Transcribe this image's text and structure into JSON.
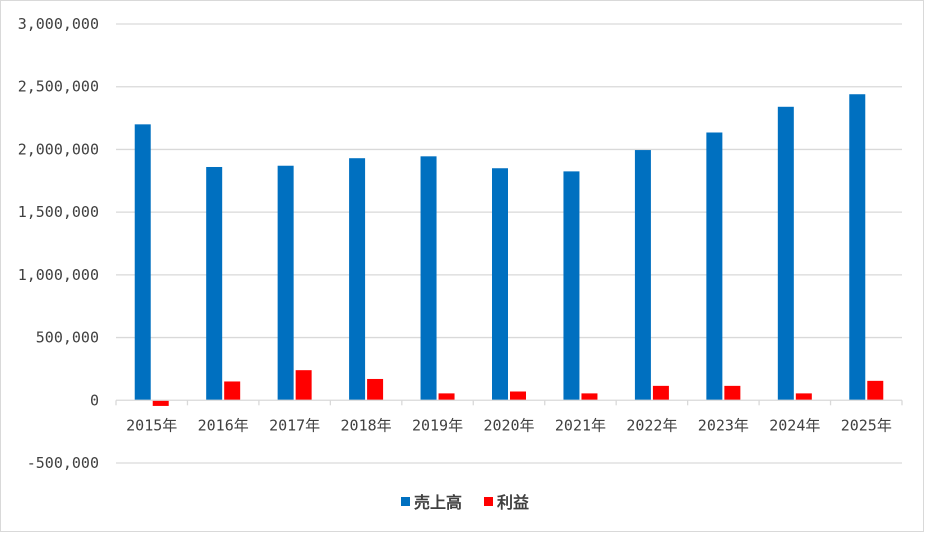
{
  "chart_data": {
    "type": "bar",
    "title": "",
    "xlabel": "",
    "ylabel": "",
    "categories": [
      "2015年",
      "2016年",
      "2017年",
      "2018年",
      "2019年",
      "2020年",
      "2021年",
      "2022年",
      "2023年",
      "2024年",
      "2025年"
    ],
    "series": [
      {
        "name": "売上高",
        "color": "#0070C0",
        "values": [
          2200000,
          1860000,
          1870000,
          1930000,
          1945000,
          1850000,
          1825000,
          1995000,
          2135000,
          2340000,
          2440000
        ]
      },
      {
        "name": "利益",
        "color": "#FF0000",
        "values": [
          -45000,
          150000,
          240000,
          170000,
          55000,
          70000,
          55000,
          115000,
          115000,
          55000,
          155000
        ]
      }
    ],
    "ylim": [
      -500000,
      3000000
    ],
    "yticks": [
      "-500,000",
      "0",
      "500,000",
      "1,000,000",
      "1,500,000",
      "2,000,000",
      "2,500,000",
      "3,000,000"
    ],
    "ytick_values": [
      -500000,
      0,
      500000,
      1000000,
      1500000,
      2000000,
      2500000,
      3000000
    ],
    "grid": true,
    "legend_position": "bottom",
    "gridline_color": "#d9d9d9"
  }
}
